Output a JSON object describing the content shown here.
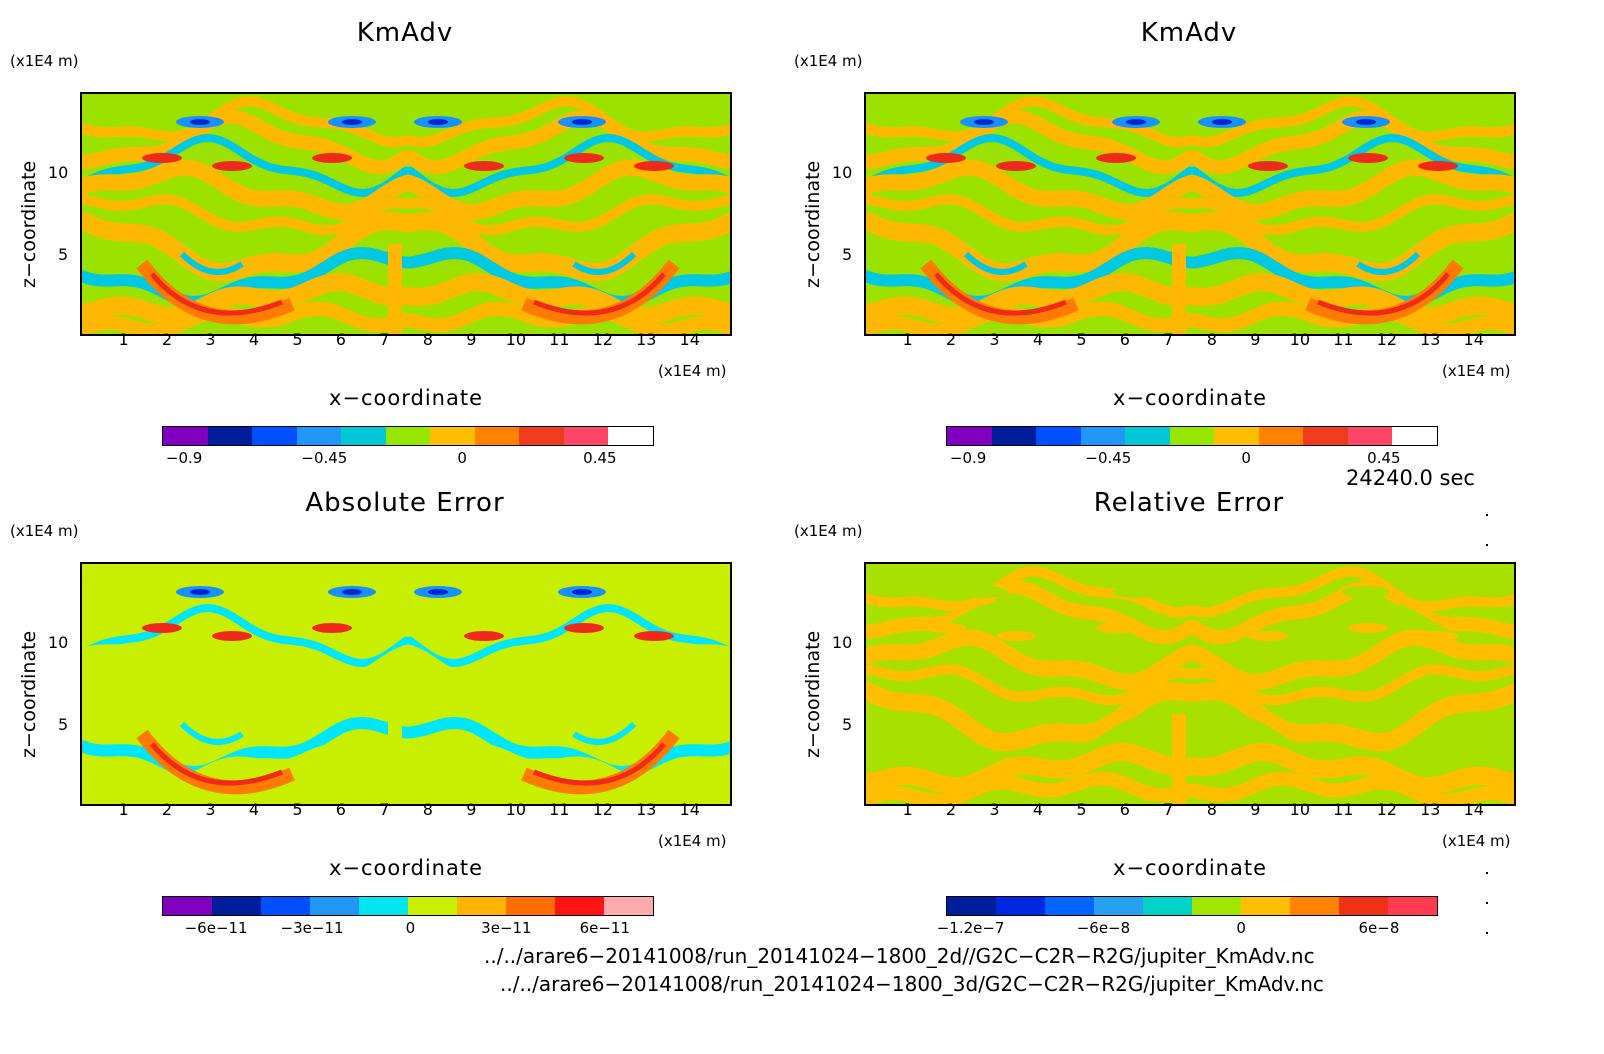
{
  "panels": [
    {
      "title": "KmAdv",
      "y_unit": "(x1E4 m)",
      "x_unit": "(x1E4 m)",
      "xlabel": "x−coordinate",
      "ylabel": "z−coordinate",
      "colorbar": {
        "colors": [
          "#7f00bf",
          "#001e9a",
          "#0050ff",
          "#2196f3",
          "#00c8d8",
          "#96e600",
          "#ffbe00",
          "#ff8200",
          "#f03c1e",
          "#ff4664",
          "#ffffff"
        ],
        "labels": [
          "−0.9",
          "−0.45",
          "0",
          "0.45"
        ]
      },
      "palette": {
        "base": "#9be200",
        "pos": [
          "#ffb800",
          "#ff7a00",
          "#ee2a1a"
        ],
        "neg": [
          "#00c8e0",
          "#1890ff",
          "#0028c8"
        ]
      }
    },
    {
      "title": "KmAdv",
      "y_unit": "(x1E4 m)",
      "x_unit": "(x1E4 m)",
      "xlabel": "x−coordinate",
      "ylabel": "z−coordinate",
      "colorbar": {
        "colors": [
          "#7f00bf",
          "#001e9a",
          "#0050ff",
          "#2196f3",
          "#00c8d8",
          "#96e600",
          "#ffbe00",
          "#ff8200",
          "#f03c1e",
          "#ff4664",
          "#ffffff"
        ],
        "labels": [
          "−0.9",
          "−0.45",
          "0",
          "0.45"
        ]
      },
      "palette": {
        "base": "#9be200",
        "pos": [
          "#ffb800",
          "#ff7a00",
          "#ee2a1a"
        ],
        "neg": [
          "#00c8e0",
          "#1890ff",
          "#0028c8"
        ]
      }
    },
    {
      "title": "Absolute Error",
      "y_unit": "(x1E4 m)",
      "x_unit": "(x1E4 m)",
      "xlabel": "x−coordinate",
      "ylabel": "z−coordinate",
      "colorbar": {
        "colors": [
          "#7f00bf",
          "#001e9a",
          "#0050ff",
          "#2196f3",
          "#00e6f0",
          "#c8f000",
          "#ffb400",
          "#ff6e00",
          "#ff1414",
          "#ffaaaa"
        ],
        "labels": [
          "−6e−11",
          "−3e−11",
          "0",
          "3e−11",
          "6e−11"
        ]
      },
      "palette": {
        "base": "#c8ef00",
        "pos": [
          "#c8ef00",
          "#ff7a00",
          "#ee2a1a"
        ],
        "neg": [
          "#00e6f8",
          "#1890ff",
          "#0028c8"
        ]
      }
    },
    {
      "title": "Relative Error",
      "y_unit": "(x1E4 m)",
      "x_unit": "(x1E4 m)",
      "xlabel": "x−coordinate",
      "ylabel": "z−coordinate",
      "colorbar": {
        "colors": [
          "#001e9a",
          "#0028e0",
          "#0064ff",
          "#28a0f0",
          "#00d2c8",
          "#a0e600",
          "#ffbe00",
          "#ff8200",
          "#f03214",
          "#ff3c50"
        ],
        "labels": [
          "−1.2e−7",
          "−6e−8",
          "0",
          "6e−8"
        ]
      },
      "palette": {
        "base": "#a8e000",
        "pos": [
          "#ffbe00",
          "#ffbe00",
          "#ffbe00"
        ],
        "neg": [
          "#a8e000",
          "#a8e000",
          "#a8e000"
        ]
      }
    }
  ],
  "chart_data": [
    {
      "type": "heatmap",
      "title": "KmAdv",
      "xlabel": "x−coordinate",
      "ylabel": "z−coordinate",
      "x_unit": "(x1E4 m)",
      "y_unit": "(x1E4 m)",
      "xlim": [
        0,
        15
      ],
      "ylim": [
        0,
        15
      ],
      "x_ticks": [
        1,
        2,
        3,
        4,
        5,
        6,
        7,
        8,
        9,
        10,
        11,
        12,
        13,
        14
      ],
      "y_ticks": [
        5,
        10
      ],
      "colorbar_ticks": [
        -0.9,
        -0.45,
        0,
        0.45
      ]
    },
    {
      "type": "heatmap",
      "title": "KmAdv",
      "xlabel": "x−coordinate",
      "ylabel": "z−coordinate",
      "x_unit": "(x1E4 m)",
      "y_unit": "(x1E4 m)",
      "xlim": [
        0,
        15
      ],
      "ylim": [
        0,
        15
      ],
      "x_ticks": [
        1,
        2,
        3,
        4,
        5,
        6,
        7,
        8,
        9,
        10,
        11,
        12,
        13,
        14
      ],
      "y_ticks": [
        5,
        10
      ],
      "colorbar_ticks": [
        -0.9,
        -0.45,
        0,
        0.45
      ]
    },
    {
      "type": "heatmap",
      "title": "Absolute Error",
      "xlabel": "x−coordinate",
      "ylabel": "z−coordinate",
      "x_unit": "(x1E4 m)",
      "y_unit": "(x1E4 m)",
      "xlim": [
        0,
        15
      ],
      "ylim": [
        0,
        15
      ],
      "x_ticks": [
        1,
        2,
        3,
        4,
        5,
        6,
        7,
        8,
        9,
        10,
        11,
        12,
        13,
        14
      ],
      "y_ticks": [
        5,
        10
      ],
      "colorbar_ticks": [
        -6e-11,
        -3e-11,
        0,
        3e-11,
        6e-11
      ]
    },
    {
      "type": "heatmap",
      "title": "Relative Error",
      "xlabel": "x−coordinate",
      "ylabel": "z−coordinate",
      "x_unit": "(x1E4 m)",
      "y_unit": "(x1E4 m)",
      "xlim": [
        0,
        15
      ],
      "ylim": [
        0,
        15
      ],
      "x_ticks": [
        1,
        2,
        3,
        4,
        5,
        6,
        7,
        8,
        9,
        10,
        11,
        12,
        13,
        14
      ],
      "y_ticks": [
        5,
        10
      ],
      "colorbar_ticks": [
        -1.2e-07,
        -6e-08,
        0,
        6e-08
      ]
    }
  ],
  "x_tick_labels": [
    "1",
    "2",
    "3",
    "4",
    "5",
    "6",
    "7",
    "8",
    "9",
    "10",
    "11",
    "12",
    "13",
    "14"
  ],
  "y_tick_labels": [
    "5",
    "10"
  ],
  "time_label": "24240.0 sec",
  "file1": "../../arare6−20141008/run_20141024−1800_2d//G2C−C2R−R2G/jupiter_KmAdv.nc",
  "file2": "../../arare6−20141008/run_20141024−1800_3d/G2C−C2R−R2G/jupiter_KmAdv.nc"
}
